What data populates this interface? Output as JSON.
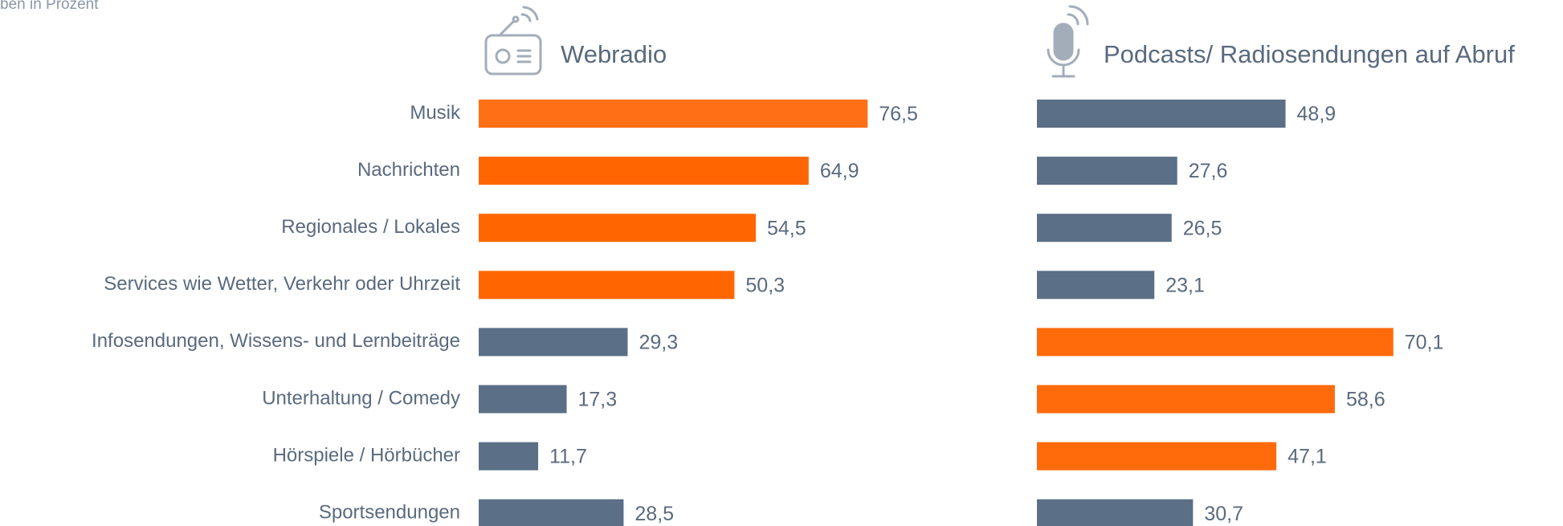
{
  "caption": "ben in Prozent",
  "chart_data": [
    {
      "type": "bar",
      "orientation": "horizontal",
      "title": "Webradio",
      "categories": [
        "Musik",
        "Nachrichten",
        "Regionales / Lokales",
        "Services wie Wetter, Verkehr oder Uhrzeit",
        "Infosendungen, Wissens- und Lernbeiträge",
        "Unterhaltung / Comedy",
        "Hörspiele / Hörbücher",
        "Sportsendungen"
      ],
      "values": [
        76.5,
        64.9,
        54.5,
        50.3,
        29.3,
        17.3,
        11.7,
        28.5
      ],
      "value_labels": [
        "76,5",
        "64,9",
        "54,5",
        "50,3",
        "29,3",
        "17,3",
        "11,7",
        "28,5"
      ],
      "colors": [
        "#ff7016",
        "#ff6600",
        "#ff6600",
        "#ff6600",
        "#5b6f86",
        "#5b6f86",
        "#5b6f86",
        "#5b6f86"
      ]
    },
    {
      "type": "bar",
      "orientation": "horizontal",
      "title": "Podcasts/ Radiosendungen auf Abruf",
      "values": [
        48.9,
        27.6,
        26.5,
        23.1,
        70.1,
        58.6,
        47.1,
        30.7
      ],
      "value_labels": [
        "48,9",
        "27,6",
        "26,5",
        "23,1",
        "70,1",
        "58,6",
        "47,1",
        "30,7"
      ],
      "colors": [
        "#5b6f86",
        "#5b6f86",
        "#5b6f86",
        "#5b6f86",
        "#ff6a0a",
        "#ff6a0a",
        "#ff6a0a",
        "#5b6f86"
      ]
    }
  ]
}
